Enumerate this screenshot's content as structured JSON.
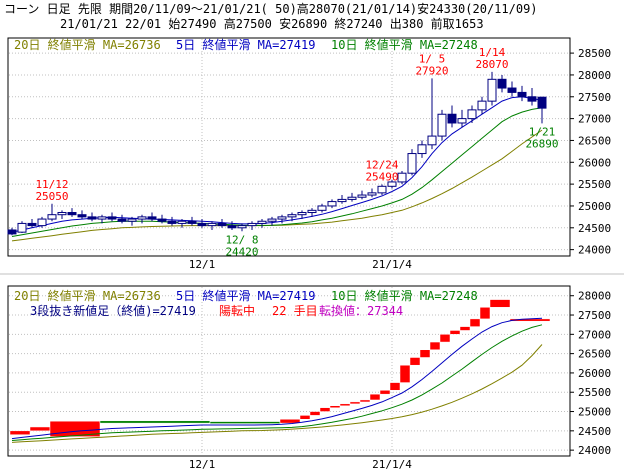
{
  "header": {
    "line1": "コーン 日足 先限 期間20/11/09～21/01/21( 50)高28070(21/01/14)安24330(20/11/09)",
    "line2": "21/01/21 22/01 始27490 高27500 安26890 終27240 出380 前取1653"
  },
  "top_legend": {
    "ma20": "20日 終値平滑 MA=26736",
    "ma5": "5日 終値平滑 MA=27419",
    "ma10": "10日 終値平滑 MA=27248"
  },
  "bottom_legend": {
    "ma20": "20日 終値平滑 MA=26736",
    "ma5": "5日 終値平滑 MA=27419",
    "ma10": "10日 終値平滑 MA=27248",
    "line_desc": "3段抜き新値足（終値)=27419",
    "trend": "陽転中",
    "count": "22 手目",
    "reversal": "転換値：27344"
  },
  "colors": {
    "ma20": "#808000",
    "ma5": "#0000c0",
    "ma10": "#008000",
    "candle": "#000080",
    "annot_high": "#ff0000",
    "annot_low": "#008000",
    "brick_up": "#ff0000",
    "brick_down": "#008000"
  },
  "chart_data": [
    {
      "type": "candlestick",
      "y_ticks": [
        24000,
        24500,
        25000,
        25500,
        26000,
        26500,
        27000,
        27500,
        28000,
        28500
      ],
      "ylim": [
        23900,
        28800
      ],
      "x_tick_labels": [
        {
          "index": 19,
          "label": "12/1"
        },
        {
          "index": 38,
          "label": "21/1/4"
        }
      ],
      "ohlc": [
        [
          24450,
          24500,
          24330,
          24360
        ],
        [
          24400,
          24650,
          24380,
          24600
        ],
        [
          24600,
          24700,
          24500,
          24550
        ],
        [
          24550,
          24750,
          24500,
          24700
        ],
        [
          24700,
          25050,
          24650,
          24800
        ],
        [
          24800,
          24900,
          24700,
          24850
        ],
        [
          24850,
          24950,
          24750,
          24800
        ],
        [
          24800,
          24900,
          24700,
          24750
        ],
        [
          24750,
          24850,
          24650,
          24700
        ],
        [
          24700,
          24800,
          24600,
          24750
        ],
        [
          24750,
          24850,
          24650,
          24700
        ],
        [
          24700,
          24800,
          24600,
          24650
        ],
        [
          24650,
          24750,
          24550,
          24700
        ],
        [
          24700,
          24800,
          24600,
          24750
        ],
        [
          24750,
          24850,
          24650,
          24700
        ],
        [
          24700,
          24800,
          24600,
          24650
        ],
        [
          24650,
          24750,
          24550,
          24600
        ],
        [
          24600,
          24700,
          24500,
          24650
        ],
        [
          24650,
          24750,
          24550,
          24600
        ],
        [
          24600,
          24700,
          24500,
          24550
        ],
        [
          24550,
          24650,
          24450,
          24600
        ],
        [
          24600,
          24700,
          24500,
          24550
        ],
        [
          24550,
          24650,
          24450,
          24500
        ],
        [
          24500,
          24600,
          24420,
          24550
        ],
        [
          24550,
          24650,
          24450,
          24600
        ],
        [
          24600,
          24700,
          24500,
          24650
        ],
        [
          24650,
          24750,
          24550,
          24700
        ],
        [
          24700,
          24800,
          24600,
          24750
        ],
        [
          24750,
          24850,
          24650,
          24800
        ],
        [
          24800,
          24900,
          24700,
          24850
        ],
        [
          24850,
          24950,
          24750,
          24900
        ],
        [
          24900,
          25050,
          24850,
          25000
        ],
        [
          25000,
          25150,
          24950,
          25100
        ],
        [
          25100,
          25250,
          25050,
          25150
        ],
        [
          25150,
          25300,
          25100,
          25200
        ],
        [
          25200,
          25350,
          25150,
          25250
        ],
        [
          25250,
          25400,
          25200,
          25300
        ],
        [
          25300,
          25490,
          25250,
          25450
        ],
        [
          25450,
          25600,
          25400,
          25550
        ],
        [
          25550,
          25800,
          25500,
          25750
        ],
        [
          25750,
          26300,
          25700,
          26200
        ],
        [
          26200,
          26500,
          26100,
          26400
        ],
        [
          26400,
          27920,
          26300,
          26600
        ],
        [
          26600,
          27200,
          26500,
          27100
        ],
        [
          27100,
          27300,
          26800,
          26900
        ],
        [
          26900,
          27200,
          26800,
          27000
        ],
        [
          27000,
          27300,
          26900,
          27200
        ],
        [
          27200,
          27500,
          27100,
          27400
        ],
        [
          27400,
          28070,
          27300,
          27900
        ],
        [
          27900,
          28000,
          27600,
          27700
        ],
        [
          27700,
          27850,
          27500,
          27600
        ],
        [
          27600,
          27750,
          27400,
          27500
        ],
        [
          27500,
          27700,
          27300,
          27400
        ],
        [
          27490,
          27500,
          26890,
          27240
        ]
      ],
      "ma5": [
        24400,
        24450,
        24500,
        24550,
        24600,
        24650,
        24680,
        24700,
        24720,
        24730,
        24740,
        24730,
        24720,
        24710,
        24700,
        24690,
        24680,
        24670,
        24660,
        24650,
        24640,
        24620,
        24600,
        24590,
        24590,
        24600,
        24620,
        24650,
        24680,
        24720,
        24760,
        24810,
        24870,
        24940,
        25010,
        25080,
        25150,
        25230,
        25330,
        25450,
        25650,
        25900,
        26200,
        26450,
        26650,
        26800,
        26950,
        27100,
        27250,
        27400,
        27480,
        27500,
        27460,
        27419
      ],
      "ma10": [
        24300,
        24340,
        24380,
        24420,
        24460,
        24500,
        24540,
        24570,
        24600,
        24620,
        24640,
        24650,
        24650,
        24650,
        24650,
        24640,
        24630,
        24620,
        24610,
        24600,
        24590,
        24580,
        24570,
        24560,
        24555,
        24555,
        24560,
        24570,
        24590,
        24610,
        24640,
        24680,
        24720,
        24770,
        24820,
        24880,
        24940,
        25000,
        25070,
        25150,
        25270,
        25420,
        25600,
        25790,
        25980,
        26170,
        26360,
        26550,
        26740,
        26930,
        27060,
        27150,
        27210,
        27248
      ],
      "ma20": [
        24200,
        24230,
        24260,
        24290,
        24320,
        24350,
        24380,
        24410,
        24440,
        24460,
        24480,
        24500,
        24510,
        24520,
        24530,
        24535,
        24540,
        24545,
        24550,
        24550,
        24550,
        24550,
        24550,
        24550,
        24550,
        24550,
        24555,
        24560,
        24570,
        24580,
        24590,
        24610,
        24630,
        24660,
        24690,
        24720,
        24760,
        24800,
        24850,
        24900,
        24980,
        25070,
        25170,
        25280,
        25400,
        25530,
        25660,
        25800,
        25940,
        26080,
        26250,
        26420,
        26580,
        26736
      ],
      "annotations": [
        {
          "index": 4,
          "date": "11/12",
          "value": "25050",
          "pos": "above",
          "kind": "high"
        },
        {
          "index": 23,
          "date": "12/ 8",
          "value": "24420",
          "pos": "below",
          "kind": "low"
        },
        {
          "index": 37,
          "date": "12/24",
          "value": "25490",
          "pos": "above",
          "kind": "high"
        },
        {
          "index": 42,
          "date": "1/ 5",
          "value": "27920",
          "pos": "above",
          "kind": "high"
        },
        {
          "index": 48,
          "date": "1/14",
          "value": "28070",
          "pos": "above",
          "kind": "high"
        },
        {
          "index": 53,
          "date": "1/21",
          "value": "26890",
          "pos": "below",
          "kind": "low"
        }
      ]
    },
    {
      "type": "new-price-line",
      "y_ticks": [
        24000,
        24500,
        25000,
        25500,
        26000,
        26500,
        27000,
        27500,
        28000
      ],
      "ylim": [
        23900,
        28200
      ],
      "x_tick_labels": [
        {
          "index": 19,
          "label": "12/1"
        },
        {
          "index": 38,
          "label": "21/1/4"
        }
      ],
      "bricks": [
        {
          "i0": 0,
          "i1": 2,
          "lo": 24400,
          "hi": 24500,
          "dir": "up"
        },
        {
          "i0": 2,
          "i1": 4,
          "lo": 24500,
          "hi": 24600,
          "dir": "up"
        },
        {
          "i0": 4,
          "i1": 9,
          "lo": 24350,
          "hi": 24750,
          "dir": "up"
        },
        {
          "i0": 9,
          "i1": 20,
          "lo": 24700,
          "hi": 24760,
          "dir": "down"
        },
        {
          "i0": 20,
          "i1": 27,
          "lo": 24690,
          "hi": 24740,
          "dir": "down"
        },
        {
          "i0": 27,
          "i1": 29,
          "lo": 24700,
          "hi": 24800,
          "dir": "up"
        },
        {
          "i0": 29,
          "i1": 30,
          "lo": 24800,
          "hi": 24900,
          "dir": "up"
        },
        {
          "i0": 30,
          "i1": 31,
          "lo": 24900,
          "hi": 25000,
          "dir": "up"
        },
        {
          "i0": 31,
          "i1": 32,
          "lo": 25000,
          "hi": 25100,
          "dir": "up"
        },
        {
          "i0": 32,
          "i1": 33,
          "lo": 25100,
          "hi": 25150,
          "dir": "up"
        },
        {
          "i0": 33,
          "i1": 34,
          "lo": 25150,
          "hi": 25200,
          "dir": "up"
        },
        {
          "i0": 34,
          "i1": 35,
          "lo": 25200,
          "hi": 25250,
          "dir": "up"
        },
        {
          "i0": 35,
          "i1": 36,
          "lo": 25250,
          "hi": 25300,
          "dir": "up"
        },
        {
          "i0": 36,
          "i1": 37,
          "lo": 25300,
          "hi": 25450,
          "dir": "up"
        },
        {
          "i0": 37,
          "i1": 38,
          "lo": 25450,
          "hi": 25550,
          "dir": "up"
        },
        {
          "i0": 38,
          "i1": 39,
          "lo": 25550,
          "hi": 25750,
          "dir": "up"
        },
        {
          "i0": 39,
          "i1": 40,
          "lo": 25750,
          "hi": 26200,
          "dir": "up"
        },
        {
          "i0": 40,
          "i1": 41,
          "lo": 26200,
          "hi": 26400,
          "dir": "up"
        },
        {
          "i0": 41,
          "i1": 42,
          "lo": 26400,
          "hi": 26600,
          "dir": "up"
        },
        {
          "i0": 42,
          "i1": 43,
          "lo": 26600,
          "hi": 26800,
          "dir": "up"
        },
        {
          "i0": 43,
          "i1": 44,
          "lo": 26800,
          "hi": 27000,
          "dir": "up"
        },
        {
          "i0": 44,
          "i1": 45,
          "lo": 27000,
          "hi": 27100,
          "dir": "up"
        },
        {
          "i0": 45,
          "i1": 46,
          "lo": 27100,
          "hi": 27200,
          "dir": "up"
        },
        {
          "i0": 46,
          "i1": 47,
          "lo": 27200,
          "hi": 27400,
          "dir": "up"
        },
        {
          "i0": 47,
          "i1": 48,
          "lo": 27400,
          "hi": 27700,
          "dir": "up"
        },
        {
          "i0": 48,
          "i1": 50,
          "lo": 27700,
          "hi": 27900,
          "dir": "up"
        },
        {
          "i0": 50,
          "i1": 54,
          "lo": 27340,
          "hi": 27400,
          "dir": "up"
        }
      ],
      "ma5": [
        24300,
        24330,
        24360,
        24390,
        24420,
        24450,
        24480,
        24500,
        24520,
        24540,
        24560,
        24570,
        24580,
        24590,
        24600,
        24610,
        24620,
        24630,
        24640,
        24650,
        24650,
        24650,
        24650,
        24650,
        24650,
        24655,
        24660,
        24670,
        24690,
        24720,
        24760,
        24810,
        24870,
        24940,
        25010,
        25080,
        25160,
        25250,
        25360,
        25480,
        25640,
        25830,
        26040,
        26260,
        26480,
        26690,
        26880,
        27060,
        27200,
        27300,
        27360,
        27390,
        27405,
        27419
      ],
      "ma10": [
        24250,
        24270,
        24290,
        24310,
        24330,
        24350,
        24370,
        24390,
        24410,
        24430,
        24450,
        24460,
        24470,
        24480,
        24490,
        24500,
        24510,
        24520,
        24530,
        24540,
        24545,
        24550,
        24555,
        24560,
        24565,
        24570,
        24575,
        24580,
        24590,
        24610,
        24640,
        24680,
        24720,
        24770,
        24820,
        24880,
        24950,
        25020,
        25100,
        25190,
        25300,
        25430,
        25580,
        25740,
        25920,
        26100,
        26290,
        26480,
        26660,
        26820,
        26960,
        27080,
        27180,
        27248
      ],
      "ma20": [
        24200,
        24215,
        24230,
        24245,
        24260,
        24275,
        24290,
        24305,
        24320,
        24335,
        24350,
        24365,
        24380,
        24395,
        24410,
        24420,
        24430,
        24440,
        24450,
        24460,
        24470,
        24480,
        24490,
        24500,
        24505,
        24510,
        24520,
        24530,
        24545,
        24560,
        24580,
        24600,
        24625,
        24650,
        24680,
        24710,
        24745,
        24780,
        24820,
        24865,
        24920,
        24985,
        25060,
        25145,
        25240,
        25345,
        25460,
        25585,
        25720,
        25865,
        26020,
        26200,
        26450,
        26736
      ]
    }
  ]
}
